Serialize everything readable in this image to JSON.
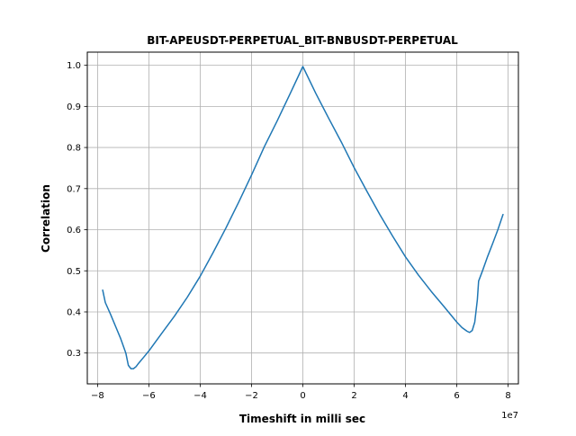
{
  "chart_data": {
    "type": "line",
    "title": "BIT-APEUSDT-PERPETUAL_BIT-BNBUSDT-PERPETUAL",
    "xlabel": "Timeshift in milli sec",
    "ylabel": "Correlation",
    "x_offset_label": "1e7",
    "xlim": [
      -8.4,
      8.4
    ],
    "ylim": [
      0.225,
      1.032
    ],
    "grid": true,
    "x_ticks": [
      -8,
      -6,
      -4,
      -2,
      0,
      2,
      4,
      6,
      8
    ],
    "x_tick_labels": [
      "−8",
      "−6",
      "−4",
      "−2",
      "0",
      "2",
      "4",
      "6",
      "8"
    ],
    "y_ticks": [
      0.3,
      0.4,
      0.5,
      0.6,
      0.7,
      0.8,
      0.9,
      1.0
    ],
    "y_tick_labels": [
      "0.3",
      "0.4",
      "0.5",
      "0.6",
      "0.7",
      "0.8",
      "0.9",
      "1.0"
    ],
    "series": [
      {
        "name": "correlation",
        "color": "#1f77b4",
        "x": [
          -7.8,
          -7.7,
          -7.5,
          -7.3,
          -7.1,
          -6.9,
          -6.8,
          -6.7,
          -6.6,
          -6.5,
          -6.4,
          -6.2,
          -6.0,
          -5.5,
          -5.0,
          -4.5,
          -4.0,
          -3.5,
          -3.0,
          -2.5,
          -2.0,
          -1.5,
          -1.0,
          -0.5,
          0.0,
          0.5,
          1.0,
          1.5,
          2.0,
          2.5,
          3.0,
          3.5,
          4.0,
          4.5,
          5.0,
          5.5,
          6.0,
          6.2,
          6.4,
          6.5,
          6.6,
          6.7,
          6.8,
          6.85,
          7.0,
          7.2,
          7.4,
          7.6,
          7.8
        ],
        "y": [
          0.453,
          0.423,
          0.395,
          0.365,
          0.335,
          0.3,
          0.27,
          0.262,
          0.262,
          0.267,
          0.275,
          0.29,
          0.305,
          0.348,
          0.39,
          0.436,
          0.487,
          0.544,
          0.604,
          0.667,
          0.733,
          0.802,
          0.865,
          0.93,
          0.997,
          0.932,
          0.872,
          0.813,
          0.751,
          0.693,
          0.637,
          0.584,
          0.534,
          0.49,
          0.45,
          0.413,
          0.375,
          0.362,
          0.353,
          0.35,
          0.355,
          0.375,
          0.43,
          0.475,
          0.5,
          0.535,
          0.567,
          0.6,
          0.637
        ]
      }
    ]
  }
}
